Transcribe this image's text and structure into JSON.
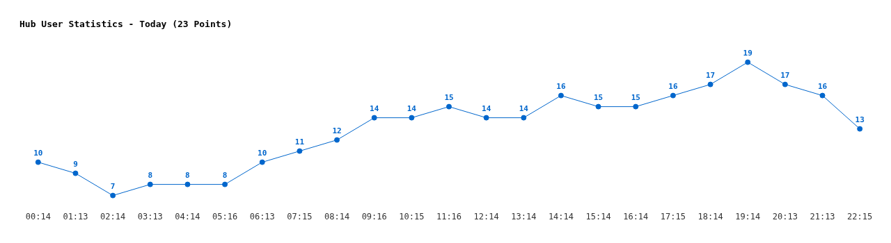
{
  "chart_data": {
    "type": "line",
    "title": "Hub User Statistics - Today (23 Points)",
    "categories": [
      "00:14",
      "01:13",
      "02:14",
      "03:13",
      "04:14",
      "05:16",
      "06:13",
      "07:15",
      "08:14",
      "09:16",
      "10:15",
      "11:16",
      "12:14",
      "13:14",
      "14:14",
      "15:14",
      "16:14",
      "17:15",
      "18:14",
      "19:14",
      "20:13",
      "21:13",
      "22:15"
    ],
    "series": [
      {
        "color": "#0066cc",
        "values": [
          10,
          9,
          7,
          8,
          8,
          8,
          10,
          11,
          12,
          14,
          14,
          15,
          14,
          14,
          16,
          15,
          15,
          16,
          17,
          19,
          17,
          16,
          13
        ]
      }
    ],
    "data_labels": true,
    "marker": "circle"
  }
}
